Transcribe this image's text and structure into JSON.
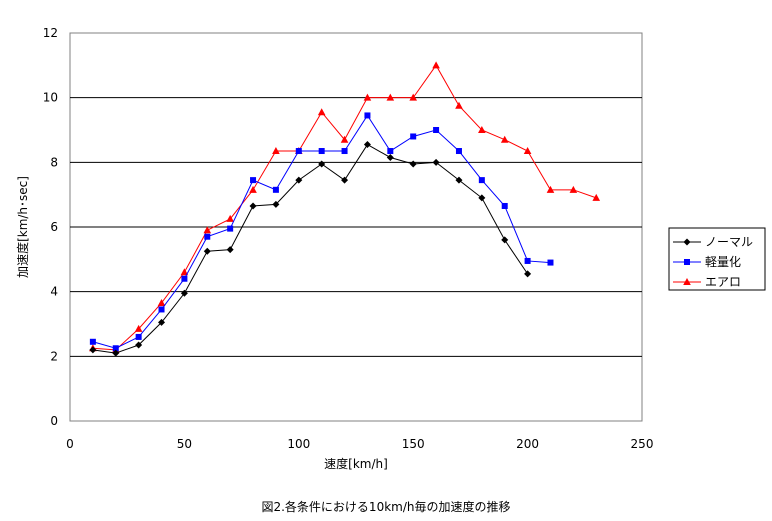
{
  "chart_data": {
    "type": "line",
    "title": "",
    "xlabel": "速度[km/h]",
    "ylabel": "加速度[km/h･sec]",
    "xlim": [
      0,
      250
    ],
    "ylim": [
      0,
      12
    ],
    "xticks": [
      0,
      50,
      100,
      150,
      200,
      250
    ],
    "yticks": [
      0,
      2,
      4,
      6,
      8,
      10,
      12
    ],
    "grid": "horizontal",
    "legend_position": "right",
    "series": [
      {
        "name": "ノーマル",
        "color": "#000000",
        "marker": "diamond",
        "x": [
          10,
          20,
          30,
          40,
          50,
          60,
          70,
          80,
          90,
          100,
          110,
          120,
          130,
          140,
          150,
          160,
          170,
          180,
          190,
          200
        ],
        "y": [
          2.2,
          2.1,
          2.35,
          3.05,
          3.95,
          5.25,
          5.3,
          6.65,
          6.7,
          7.45,
          7.95,
          7.45,
          8.55,
          8.15,
          7.95,
          8.0,
          7.45,
          6.9,
          5.6,
          4.55
        ]
      },
      {
        "name": "軽量化",
        "color": "#0000ff",
        "marker": "square",
        "x": [
          10,
          20,
          30,
          40,
          50,
          60,
          70,
          80,
          90,
          100,
          110,
          120,
          130,
          140,
          150,
          160,
          170,
          180,
          190,
          200,
          210
        ],
        "y": [
          2.45,
          2.25,
          2.6,
          3.45,
          4.4,
          5.7,
          5.95,
          7.45,
          7.15,
          8.35,
          8.35,
          8.35,
          9.45,
          8.35,
          8.8,
          9.0,
          8.35,
          7.45,
          6.65,
          4.95,
          4.9
        ]
      },
      {
        "name": "エアロ",
        "color": "#ff0000",
        "marker": "triangle",
        "x": [
          10,
          20,
          30,
          40,
          50,
          60,
          70,
          80,
          90,
          100,
          110,
          120,
          130,
          140,
          150,
          160,
          170,
          180,
          190,
          200,
          210,
          220,
          230
        ],
        "y": [
          2.25,
          2.2,
          2.85,
          3.65,
          4.6,
          5.9,
          6.25,
          7.15,
          8.35,
          8.35,
          9.55,
          8.7,
          10.0,
          10.0,
          10.0,
          11.0,
          9.75,
          9.0,
          8.7,
          8.35,
          7.15,
          7.15,
          6.9
        ]
      }
    ],
    "caption": "図2.各条件における10km/h毎の加速度の推移"
  }
}
